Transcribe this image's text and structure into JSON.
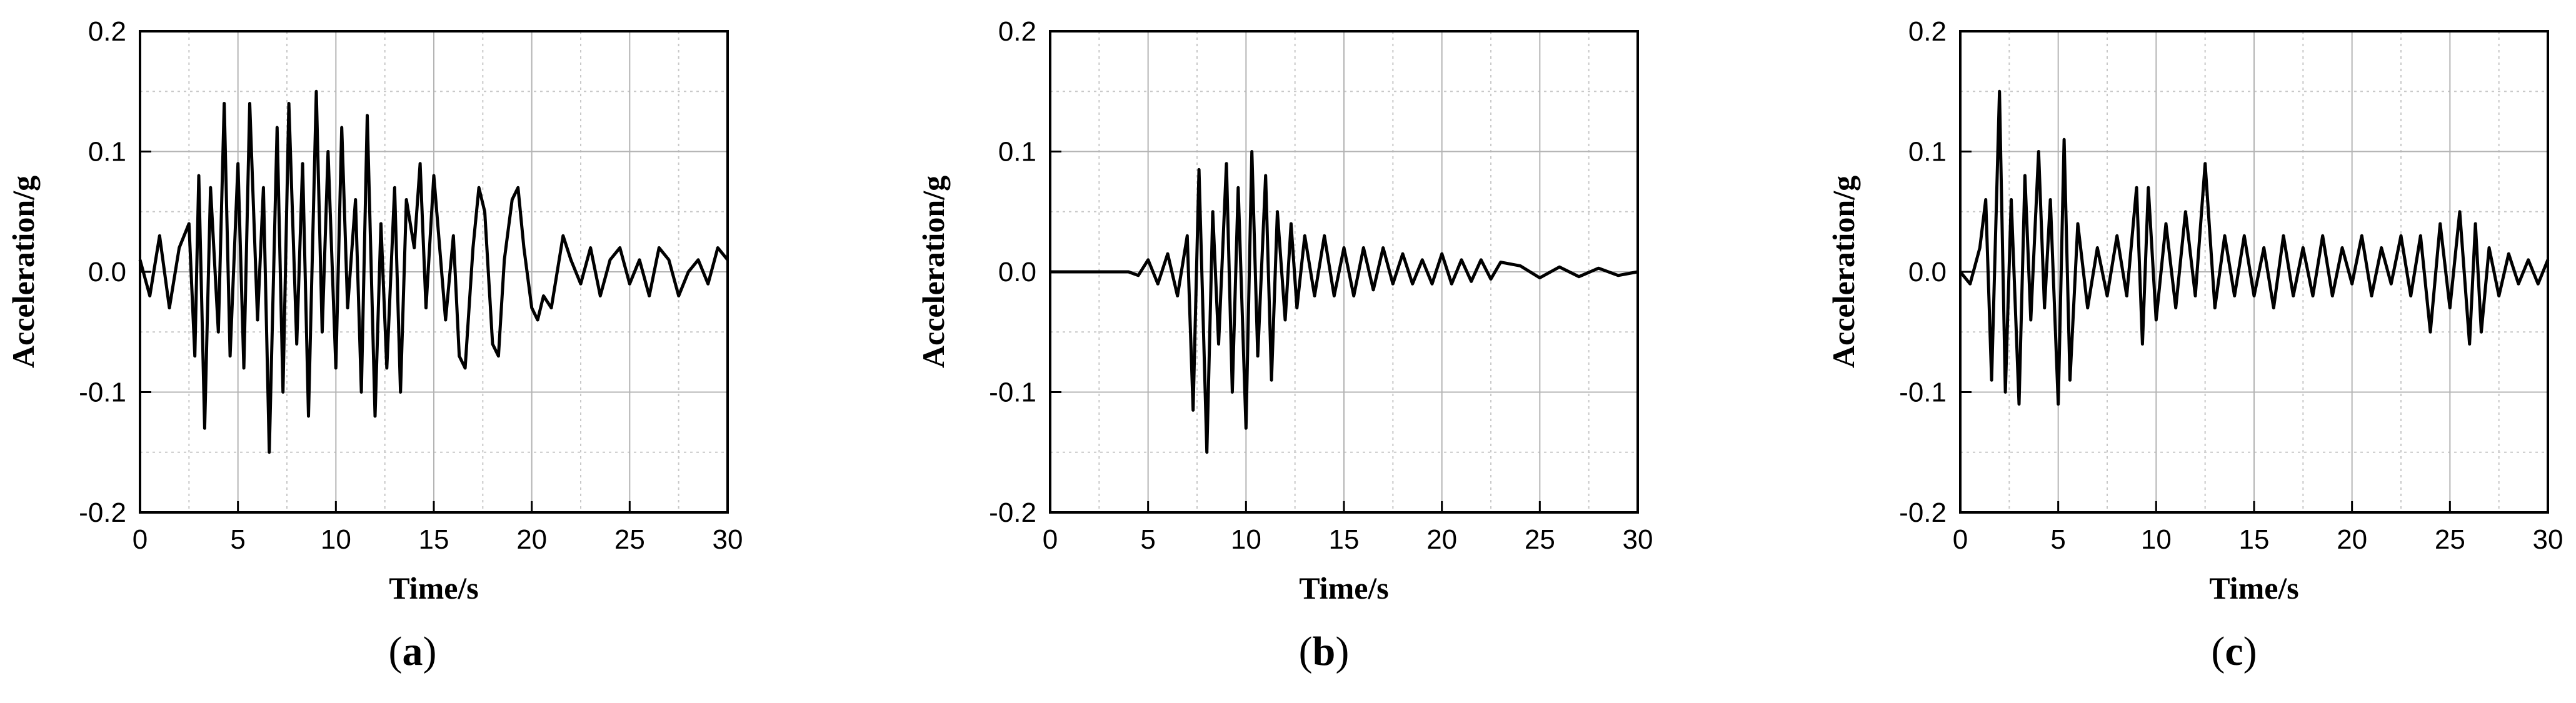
{
  "chart_data": [
    {
      "panel_label": "a",
      "type": "line",
      "xlabel": "Time/s",
      "ylabel": "Acceleration/g",
      "xlim": [
        0,
        30
      ],
      "ylim": [
        -0.2,
        0.2
      ],
      "xticks": [
        "0",
        "5",
        "10",
        "15",
        "20",
        "25",
        "30"
      ],
      "yticks": [
        "0.2",
        "0.1",
        "0.0",
        "-0.1",
        "-0.2"
      ],
      "grid": true,
      "line_color": "#000000",
      "x": [
        0.0,
        0.5,
        1.0,
        1.5,
        2.0,
        2.5,
        2.8,
        3.0,
        3.3,
        3.6,
        4.0,
        4.3,
        4.6,
        5.0,
        5.3,
        5.6,
        6.0,
        6.3,
        6.6,
        7.0,
        7.3,
        7.6,
        8.0,
        8.3,
        8.6,
        9.0,
        9.3,
        9.6,
        10.0,
        10.3,
        10.6,
        11.0,
        11.3,
        11.6,
        12.0,
        12.3,
        12.6,
        13.0,
        13.3,
        13.6,
        14.0,
        14.3,
        14.6,
        15.0,
        15.3,
        15.6,
        16.0,
        16.3,
        16.6,
        17.0,
        17.3,
        17.6,
        18.0,
        18.3,
        18.6,
        19.0,
        19.3,
        19.6,
        20.0,
        20.3,
        20.6,
        21.0,
        21.3,
        21.6,
        22.0,
        22.5,
        23.0,
        23.5,
        24.0,
        24.5,
        25.0,
        25.5,
        26.0,
        26.5,
        27.0,
        27.5,
        28.0,
        28.5,
        29.0,
        29.5,
        30.0
      ],
      "values": [
        0.01,
        -0.02,
        0.03,
        -0.03,
        0.02,
        0.04,
        -0.07,
        0.08,
        -0.13,
        0.07,
        -0.05,
        0.14,
        -0.07,
        0.09,
        -0.08,
        0.14,
        -0.04,
        0.07,
        -0.15,
        0.12,
        -0.1,
        0.14,
        -0.06,
        0.09,
        -0.12,
        0.15,
        -0.05,
        0.1,
        -0.08,
        0.12,
        -0.03,
        0.06,
        -0.1,
        0.13,
        -0.12,
        0.04,
        -0.08,
        0.07,
        -0.1,
        0.06,
        0.02,
        0.09,
        -0.03,
        0.08,
        0.02,
        -0.04,
        0.03,
        -0.07,
        -0.08,
        0.02,
        0.07,
        0.05,
        -0.06,
        -0.07,
        0.01,
        0.06,
        0.07,
        0.02,
        -0.03,
        -0.04,
        -0.02,
        -0.03,
        0.0,
        0.03,
        0.01,
        -0.01,
        0.02,
        -0.02,
        0.01,
        0.02,
        -0.01,
        0.01,
        -0.02,
        0.02,
        0.01,
        -0.02,
        0.0,
        0.01,
        -0.01,
        0.02,
        0.01
      ]
    },
    {
      "panel_label": "b",
      "type": "line",
      "xlabel": "Time/s",
      "ylabel": "Acceleration/g",
      "xlim": [
        0,
        30
      ],
      "ylim": [
        -0.2,
        0.2
      ],
      "xticks": [
        "0",
        "5",
        "10",
        "15",
        "20",
        "25",
        "30"
      ],
      "yticks": [
        "0.2",
        "0.1",
        "0.0",
        "-0.1",
        "-0.2"
      ],
      "grid": true,
      "line_color": "#000000",
      "x": [
        0.0,
        1.0,
        2.0,
        3.0,
        4.0,
        4.5,
        5.0,
        5.5,
        6.0,
        6.5,
        7.0,
        7.3,
        7.6,
        8.0,
        8.3,
        8.6,
        9.0,
        9.3,
        9.6,
        10.0,
        10.3,
        10.6,
        11.0,
        11.3,
        11.6,
        12.0,
        12.3,
        12.6,
        13.0,
        13.5,
        14.0,
        14.5,
        15.0,
        15.5,
        16.0,
        16.5,
        17.0,
        17.5,
        18.0,
        18.5,
        19.0,
        19.5,
        20.0,
        20.5,
        21.0,
        21.5,
        22.0,
        22.5,
        23.0,
        24.0,
        25.0,
        26.0,
        27.0,
        28.0,
        29.0,
        30.0
      ],
      "values": [
        0.0,
        0.0,
        0.0,
        0.0,
        0.0,
        -0.003,
        0.01,
        -0.01,
        0.015,
        -0.02,
        0.03,
        -0.115,
        0.085,
        -0.15,
        0.05,
        -0.06,
        0.09,
        -0.1,
        0.07,
        -0.13,
        0.1,
        -0.07,
        0.08,
        -0.09,
        0.05,
        -0.04,
        0.04,
        -0.03,
        0.03,
        -0.02,
        0.03,
        -0.02,
        0.02,
        -0.02,
        0.02,
        -0.015,
        0.02,
        -0.01,
        0.015,
        -0.01,
        0.01,
        -0.01,
        0.015,
        -0.01,
        0.01,
        -0.008,
        0.01,
        -0.006,
        0.008,
        0.005,
        -0.005,
        0.004,
        -0.004,
        0.003,
        -0.003,
        0.0
      ]
    },
    {
      "panel_label": "c",
      "type": "line",
      "xlabel": "Time/s",
      "ylabel": "Acceleration/g",
      "xlim": [
        0,
        30
      ],
      "ylim": [
        -0.2,
        0.2
      ],
      "xticks": [
        "0",
        "5",
        "10",
        "15",
        "20",
        "25",
        "30"
      ],
      "yticks": [
        "0.2",
        "0.1",
        "0.0",
        "-0.1",
        "-0.2"
      ],
      "grid": true,
      "line_color": "#000000",
      "x": [
        0.0,
        0.5,
        1.0,
        1.3,
        1.6,
        2.0,
        2.3,
        2.6,
        3.0,
        3.3,
        3.6,
        4.0,
        4.3,
        4.6,
        5.0,
        5.3,
        5.6,
        6.0,
        6.5,
        7.0,
        7.5,
        8.0,
        8.5,
        9.0,
        9.3,
        9.6,
        10.0,
        10.5,
        11.0,
        11.5,
        12.0,
        12.5,
        13.0,
        13.5,
        14.0,
        14.5,
        15.0,
        15.5,
        16.0,
        16.5,
        17.0,
        17.5,
        18.0,
        18.5,
        19.0,
        19.5,
        20.0,
        20.5,
        21.0,
        21.5,
        22.0,
        22.5,
        23.0,
        23.5,
        24.0,
        24.5,
        25.0,
        25.5,
        26.0,
        26.3,
        26.6,
        27.0,
        27.5,
        28.0,
        28.5,
        29.0,
        29.5,
        30.0
      ],
      "values": [
        0.0,
        -0.01,
        0.02,
        0.06,
        -0.09,
        0.15,
        -0.1,
        0.06,
        -0.11,
        0.08,
        -0.04,
        0.1,
        -0.03,
        0.06,
        -0.11,
        0.11,
        -0.09,
        0.04,
        -0.03,
        0.02,
        -0.02,
        0.03,
        -0.02,
        0.07,
        -0.06,
        0.07,
        -0.04,
        0.04,
        -0.03,
        0.05,
        -0.02,
        0.09,
        -0.03,
        0.03,
        -0.02,
        0.03,
        -0.02,
        0.02,
        -0.03,
        0.03,
        -0.02,
        0.02,
        -0.02,
        0.03,
        -0.02,
        0.02,
        -0.01,
        0.03,
        -0.02,
        0.02,
        -0.01,
        0.03,
        -0.02,
        0.03,
        -0.05,
        0.04,
        -0.03,
        0.05,
        -0.06,
        0.04,
        -0.05,
        0.02,
        -0.02,
        0.015,
        -0.01,
        0.01,
        -0.01,
        0.01
      ]
    }
  ]
}
